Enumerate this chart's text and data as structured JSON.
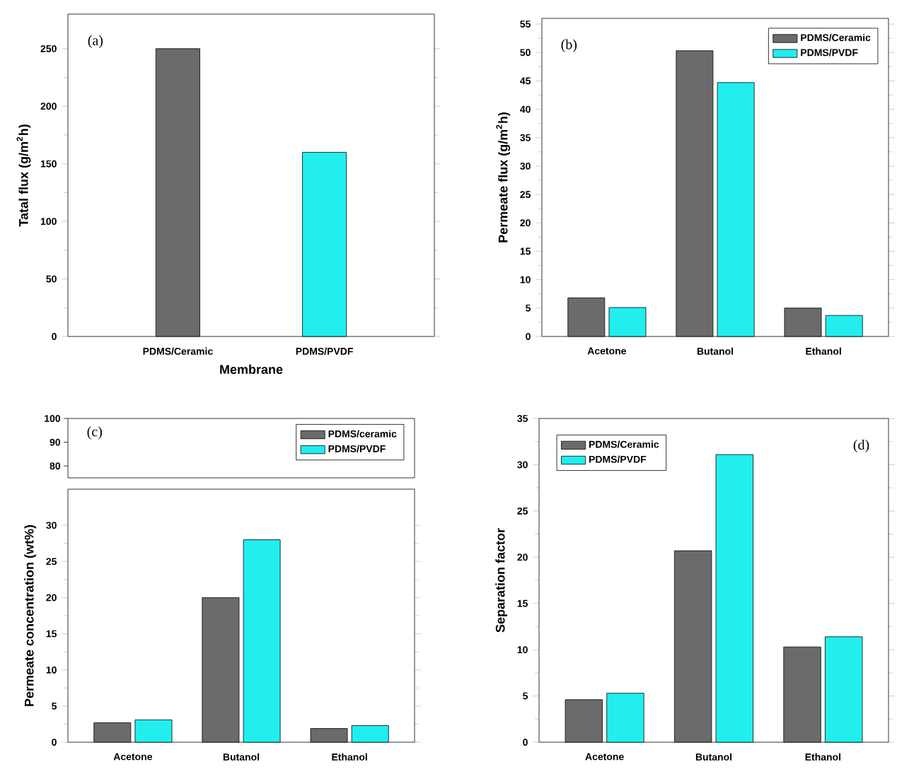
{
  "chart_data": [
    {
      "type": "bar",
      "categories": [
        "PDMS/Ceramic",
        "PDMS/PVDF"
      ],
      "values": [
        250,
        160
      ],
      "colors": [
        "#6b6b6b",
        "#22eeee"
      ],
      "xlabel": "Membrane",
      "ylabel": "Tatal flux (g/m$^{2}$h)",
      "ylim": [
        0,
        280
      ],
      "yticks": [
        0,
        50,
        100,
        150,
        200,
        250
      ],
      "annotations": [
        "(a)"
      ]
    },
    {
      "type": "bar",
      "categories": [
        "Acetone",
        "Butanol",
        "Ethanol"
      ],
      "ylabel": "Permeate flux (g/m$^{2}$h)",
      "ylim": [
        0,
        56
      ],
      "yticks": [
        0,
        5,
        10,
        15,
        20,
        25,
        30,
        35,
        40,
        45,
        50,
        55
      ],
      "legend": "top right",
      "annotations": [
        "(b)"
      ],
      "series": [
        {
          "name": "PDMS/Ceramic",
          "color": "#6b6b6b",
          "values": [
            6.8,
            50.3,
            5.0
          ]
        },
        {
          "name": "PDMS/PVDF",
          "color": "#22eeee",
          "values": [
            5.1,
            44.7,
            3.7
          ]
        }
      ]
    },
    {
      "type": "other",
      "annotations": [
        "(c)",
        "100",
        "90",
        "80"
      ]
    },
    {
      "type": "bar",
      "categories": [
        "Acetone",
        "Butanol",
        "Ethanol"
      ],
      "ylabel": "Permeate concentration (wt%)",
      "ylim": [
        0,
        35
      ],
      "yticks": [
        0,
        5,
        10,
        15,
        20,
        25,
        30
      ],
      "legend": "top right",
      "series": [
        {
          "name": "PDMS/ceramic",
          "color": "#6b6b6b",
          "values": [
            2.7,
            20,
            1.9
          ]
        },
        {
          "name": "PDMS/PVDF",
          "color": "#22eeee",
          "values": [
            3.1,
            28,
            2.3
          ]
        }
      ]
    },
    {
      "type": "bar",
      "categories": [
        "Acetone",
        "Butanol",
        "Ethanol"
      ],
      "ylabel": "Separation factor",
      "ylim": [
        0,
        35
      ],
      "yticks": [
        0,
        5,
        10,
        15,
        20,
        25,
        30,
        35
      ],
      "legend": "top left",
      "annotations": [
        "(d)"
      ],
      "series": [
        {
          "name": "PDMS/Ceramic",
          "color": "#6b6b6b",
          "values": [
            4.6,
            20.7,
            10.3
          ]
        },
        {
          "name": "PDMS/PVDF",
          "color": "#22eeee",
          "values": [
            5.3,
            31.1,
            11.4
          ]
        }
      ]
    }
  ]
}
